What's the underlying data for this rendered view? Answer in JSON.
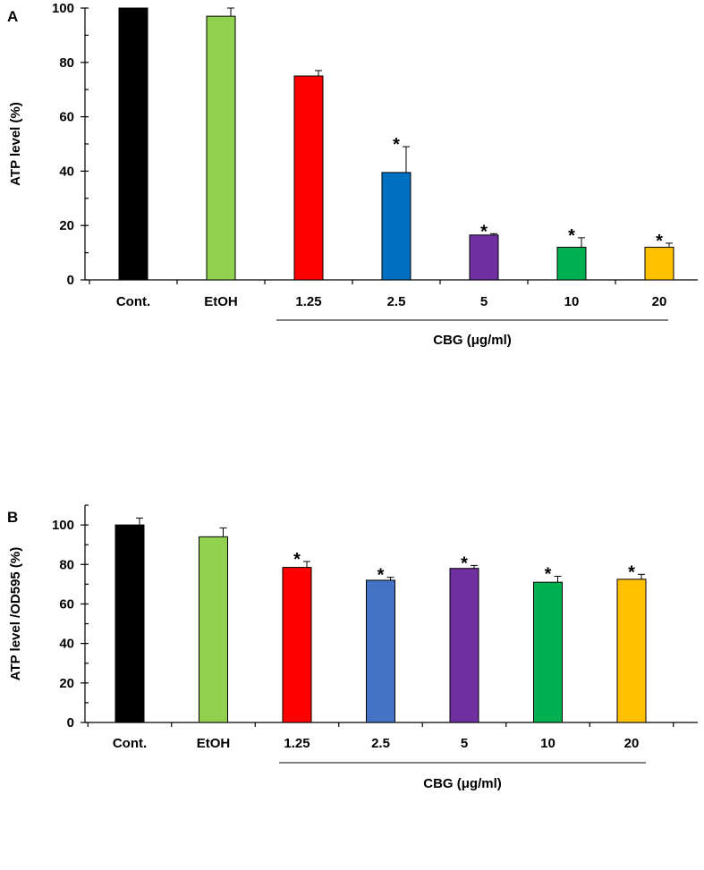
{
  "chart_data": [
    {
      "type": "bar",
      "panel": "A",
      "ylabel": "ATP level (%)",
      "group_label": "CBG (μg/ml)",
      "ylim": [
        0,
        100
      ],
      "yticks": [
        0,
        20,
        40,
        60,
        80,
        100
      ],
      "categories": [
        "Cont.",
        "EtOH",
        "1.25",
        "2.5",
        "5",
        "10",
        "20"
      ],
      "values": [
        100,
        97,
        75,
        39.5,
        16.5,
        12,
        12
      ],
      "errors": [
        0,
        3,
        2,
        9.5,
        0.5,
        3.5,
        1.5
      ],
      "significant": [
        false,
        false,
        false,
        true,
        true,
        true,
        true
      ],
      "sig_marker": "*",
      "colors": [
        "#000000",
        "#92d050",
        "#ff0000",
        "#0070c0",
        "#7030a0",
        "#00b050",
        "#ffc000"
      ]
    },
    {
      "type": "bar",
      "panel": "B",
      "ylabel": "ATP level /OD595 (%)",
      "group_label": "CBG (μg/ml)",
      "ylim": [
        0,
        110
      ],
      "yticks": [
        0,
        20,
        40,
        60,
        80,
        100
      ],
      "categories": [
        "Cont.",
        "EtOH",
        "1.25",
        "2.5",
        "5",
        "10",
        "20"
      ],
      "values": [
        100,
        94,
        78.5,
        72,
        78,
        71,
        72.5
      ],
      "errors": [
        3.5,
        4.5,
        3,
        1.5,
        1.5,
        3,
        2.5
      ],
      "significant": [
        false,
        false,
        true,
        true,
        true,
        true,
        true
      ],
      "sig_marker": "*",
      "colors": [
        "#000000",
        "#92d050",
        "#ff0000",
        "#4472c4",
        "#7030a0",
        "#00b050",
        "#ffc000"
      ]
    }
  ]
}
